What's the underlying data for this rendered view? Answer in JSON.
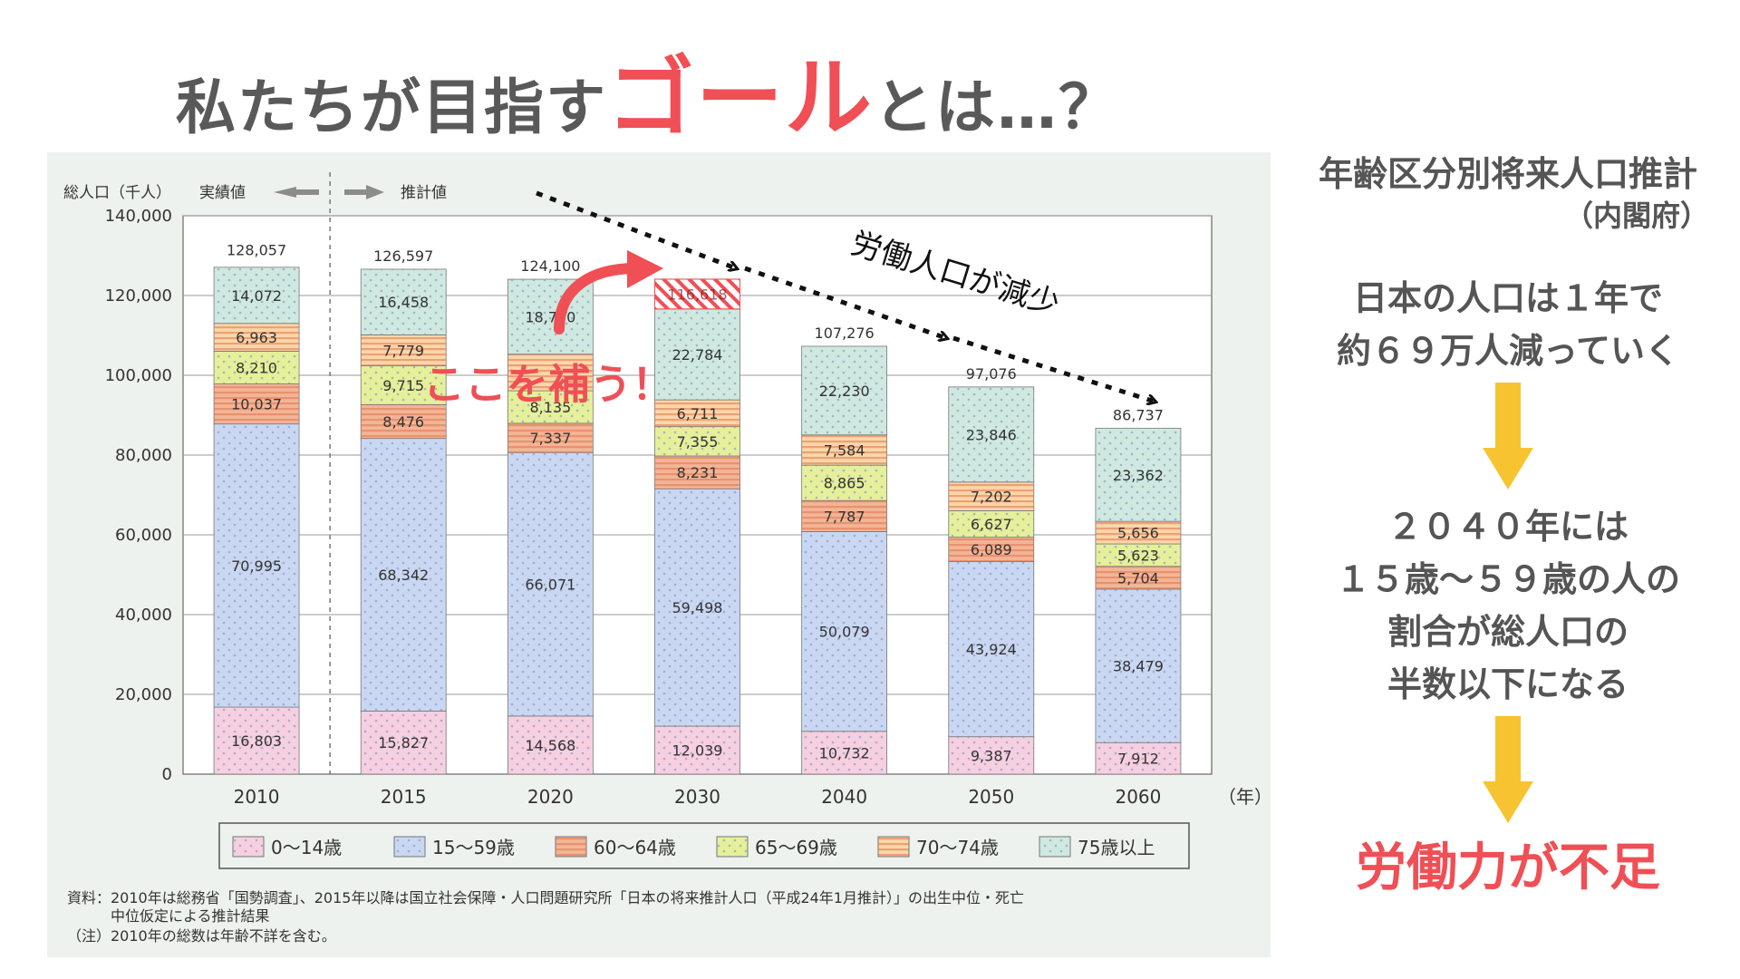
{
  "headline": {
    "pre": "私たちが目指す",
    "goal": "ゴール",
    "post": "とは…？"
  },
  "right_panel": {
    "title": "年齢区分別将来人口推計",
    "source": "（内閣府）",
    "point1_line1": "日本の人口は１年で",
    "point1_line2": "約６９万人減っていく",
    "point2_line1": "２０４０年には",
    "point2_line2": "１５歳〜５９歳の人の",
    "point2_line3": "割合が総人口の",
    "point2_line4": "半数以下になる",
    "conclusion": "労働力が不足",
    "arrow_color": "#f7c331",
    "accent_color": "#ef4f55"
  },
  "annotations": {
    "labor_decrease": "労働人口が減少",
    "fill_gap": "ここを補う！"
  },
  "chart_data": {
    "type": "bar",
    "stacked": true,
    "ylabel": "総人口（千人）",
    "xunit": "（年）",
    "actual_label": "実績値",
    "projection_label": "推計値",
    "ylim": [
      0,
      140000
    ],
    "yticks": [
      0,
      20000,
      40000,
      60000,
      80000,
      100000,
      120000,
      140000
    ],
    "ytick_labels": [
      "0",
      "20,000",
      "40,000",
      "60,000",
      "80,000",
      "100,000",
      "120,000",
      "140,000"
    ],
    "grid": true,
    "legend_position": "bottom",
    "categories": [
      "2010",
      "2015",
      "2020",
      "2030",
      "2040",
      "2050",
      "2060"
    ],
    "totals": [
      128057,
      126597,
      124100,
      116618,
      107276,
      97076,
      86737
    ],
    "total_labels": [
      "128,057",
      "126,597",
      "124,100",
      "116,618",
      "107,276",
      "97,076",
      "86,737"
    ],
    "series": [
      {
        "name": "0〜14歳",
        "color": "#f6cfe0",
        "values": [
          16803,
          15827,
          14568,
          12039,
          10732,
          9387,
          7912
        ],
        "labels": [
          "16,803",
          "15,827",
          "14,568",
          "12,039",
          "10,732",
          "9,387",
          "7,912"
        ]
      },
      {
        "name": "15〜59歳",
        "color": "#c9d7f2",
        "values": [
          70995,
          68342,
          66071,
          59498,
          50079,
          43924,
          38479
        ],
        "labels": [
          "70,995",
          "68,342",
          "66,071",
          "59,498",
          "50,079",
          "43,924",
          "38,479"
        ]
      },
      {
        "name": "60〜64歳",
        "color": "#f2b596",
        "values": [
          10037,
          8476,
          7337,
          8231,
          7787,
          6089,
          5704
        ],
        "labels": [
          "10,037",
          "8,476",
          "7,337",
          "8,231",
          "7,787",
          "6,089",
          "5,704"
        ]
      },
      {
        "name": "65〜69歳",
        "color": "#e6ef99",
        "values": [
          8210,
          9715,
          8135,
          7355,
          8865,
          6627,
          5623
        ],
        "labels": [
          "8,210",
          "9,715",
          "8,135",
          "7,355",
          "8,865",
          "6,627",
          "5,623"
        ]
      },
      {
        "name": "70〜74歳",
        "color": "#fad6a8",
        "values": [
          6963,
          7779,
          9179,
          6711,
          7584,
          7202,
          5656
        ],
        "labels": [
          "6,963",
          "7,779",
          "",
          "6,711",
          "7,584",
          "7,202",
          "5,656"
        ]
      },
      {
        "name": "75歳以上",
        "color": "#cfe8e0",
        "values": [
          14072,
          16458,
          18790,
          22784,
          22230,
          23846,
          23362
        ],
        "labels": [
          "14,072",
          "16,458",
          "18,790",
          "22,784",
          "22,230",
          "23,846",
          "23,362"
        ]
      }
    ],
    "gap_bar_index": 3,
    "gap_top_value": 124100,
    "note_line1": "資料：2010年は総務省「国勢調査」、2015年以降は国立社会保障・人口問題研究所「日本の将来推計人口（平成24年1月推計）」の出生中位・死亡",
    "note_line2": "中位仮定による推計結果",
    "note_line3": "（注）2010年の総数は年齢不詳を含む。"
  }
}
